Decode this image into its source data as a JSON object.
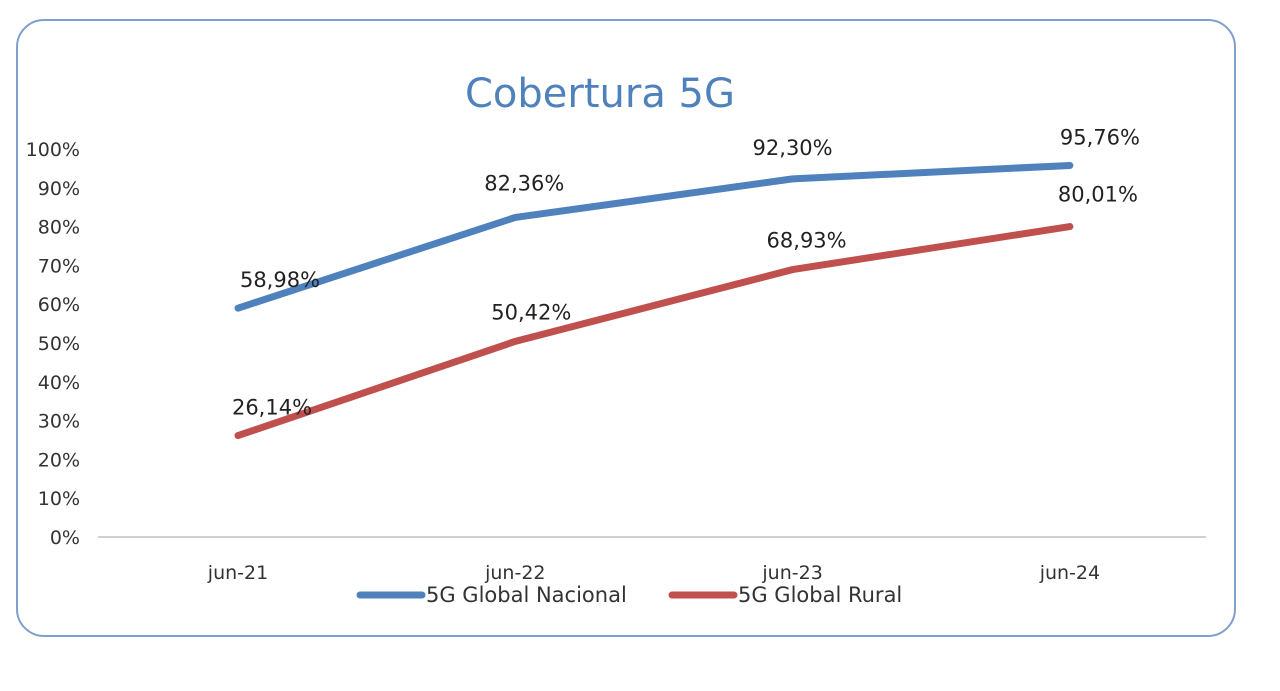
{
  "chart_data": {
    "type": "line",
    "title": "Cobertura 5G",
    "categories": [
      "jun-21",
      "jun-22",
      "jun-23",
      "jun-24"
    ],
    "ylim": [
      0,
      100
    ],
    "yticks": [
      0,
      10,
      20,
      30,
      40,
      50,
      60,
      70,
      80,
      90,
      100
    ],
    "ytick_labels": [
      "0%",
      "10%",
      "20%",
      "30%",
      "40%",
      "50%",
      "60%",
      "70%",
      "80%",
      "90%",
      "100%"
    ],
    "grid": false,
    "legend_position": "bottom",
    "series": [
      {
        "name": "5G Global Nacional",
        "color": "#4f81bd",
        "values": [
          58.98,
          82.36,
          92.3,
          95.76
        ],
        "labels": [
          "58,98%",
          "82,36%",
          "92,30%",
          "95,76%"
        ]
      },
      {
        "name": "5G Global Rural",
        "color": "#c0504d",
        "values": [
          26.14,
          50.42,
          68.93,
          80.01
        ],
        "labels": [
          "26,14%",
          "50,42%",
          "68,93%",
          "80,01%"
        ]
      }
    ],
    "title_color": "#4f81bd",
    "axis_color": "#d0d0d0"
  }
}
